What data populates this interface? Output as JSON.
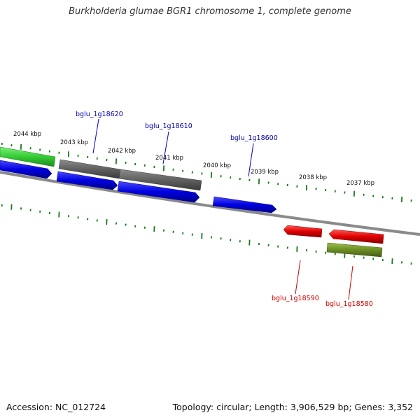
{
  "title": "Burkholderia glumae BGR1 chromosome 1, complete genome",
  "footer": {
    "accession": "Accession: NC_012724",
    "topology": "Topology: circular; Length: 3,906,529 bp; Genes: 3,352"
  },
  "scale_labels": [
    "2044 kbp",
    "2043 kbp",
    "2042 kbp",
    "2041 kbp",
    "2040 kbp",
    "2039 kbp",
    "2038 kbp",
    "2037 kbp"
  ],
  "gene_labels": {
    "top": [
      "bglu_1g18620",
      "bglu_1g18610",
      "bglu_1g18600"
    ],
    "bottom": [
      "bglu_1g18590",
      "bglu_1g18580"
    ]
  },
  "colors": {
    "forward_cds": "#0000e0",
    "reverse_cds": "#e00000",
    "grey_feature": "#606060",
    "green_feature": "#33cc33",
    "olive_feature": "#6b8e23",
    "tick": "#1a7a1a",
    "backbone": "#808080",
    "top_label": "#0000aa",
    "bottom_label": "#cc0000"
  }
}
